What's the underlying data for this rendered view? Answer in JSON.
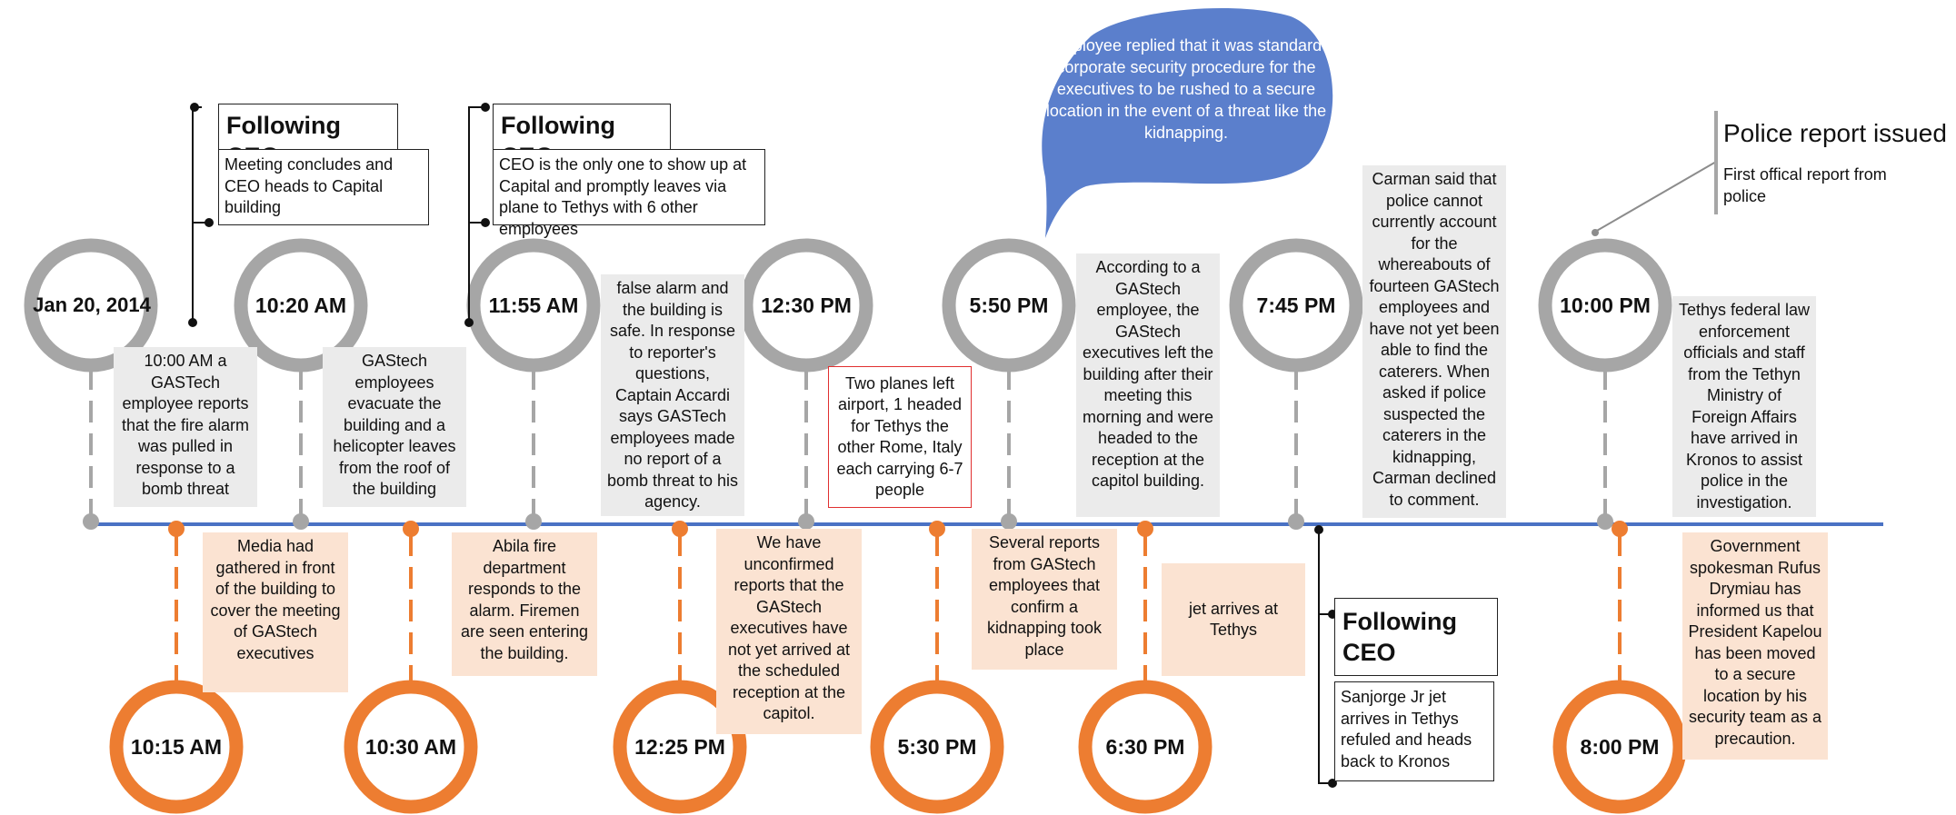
{
  "timeline": {
    "top_events": [
      {
        "time": "Jan 20, 2014"
      },
      {
        "time": "10:20 AM"
      },
      {
        "time": "11:55 AM"
      },
      {
        "time": "12:30 PM"
      },
      {
        "time": "5:50 PM"
      },
      {
        "time": "7:45 PM"
      },
      {
        "time": "10:00 PM"
      }
    ],
    "bottom_events": [
      {
        "time": "10:15 AM"
      },
      {
        "time": "10:30 AM"
      },
      {
        "time": "12:25 PM"
      },
      {
        "time": "5:30 PM"
      },
      {
        "time": "6:30 PM"
      },
      {
        "time": "8:00 PM"
      }
    ],
    "top_notes": [
      "10:00 AM a GASTech employee reports that the fire alarm was pulled in response to a bomb threat",
      "GAStech employees evacuate the building and a helicopter leaves from the roof of the building",
      "false alarm and the building is safe. In response to reporter's questions, Captain Accardi says GASTech employees made no report of a bomb threat to his agency.",
      "Two planes left airport, 1 headed for Tethys the other Rome, Italy each carrying 6-7 people",
      "According to a GAStech employee, the GAStech executives left the building after their meeting this morning and were headed to the reception at the capitol building.",
      "Carman said that police cannot currently account for the whereabouts of fourteen GAStech employees and have not yet been able to find the caterers. When asked if police suspected the caterers in the kidnapping, Carman declined to comment.",
      "Tethys federal law enforcement officials and staff from the Tethyn Ministry of Foreign Affairs have arrived in Kronos to assist police in the investigation."
    ],
    "bottom_notes": [
      "Media had gathered in front of the building to cover the meeting of GAStech executives",
      "Abila fire department responds to the alarm. Firemen are seen entering the building.",
      "We have unconfirmed reports that the GAStech executives have not yet arrived at the scheduled reception at the capitol.",
      "Several reports from GAStech employees that confirm a kidnapping took place",
      "jet arrives at Tethys",
      "Government spokesman Rufus Drymiau has informed us that President Kapelou has been moved to a secure location by his security team as a precaution."
    ],
    "ceo_callouts": [
      {
        "title": "Following CEO",
        "body": "Meeting concludes and CEO heads to Capital building"
      },
      {
        "title": "Following CEO",
        "body": "CEO is the only one to show up at Capital and promptly leaves via plane to Tethys with 6 other employees"
      },
      {
        "title": "Following CEO",
        "body": "Sanjorge Jr jet arrives in Tethys refuled and heads back to Kronos"
      }
    ],
    "speech_bubble": "employee replied that it was standard corporate security procedure for the executives to be rushed to a secure location in the event of a threat like the kidnapping.",
    "police_report": {
      "title": "Police report issued",
      "body": "First offical report from police"
    }
  },
  "colors": {
    "axis": "#4a72c4",
    "grey_marker": "#a6a6a6",
    "orange_marker": "#ed7d31",
    "grey_note_bg": "#ebebeb",
    "peach_note_bg": "#fbe3d2",
    "bubble": "#5b7fcc"
  }
}
